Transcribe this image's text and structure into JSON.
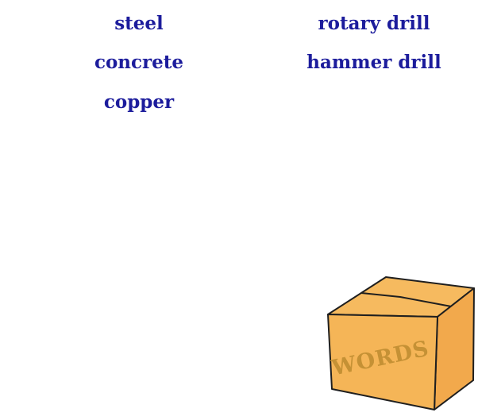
{
  "words": {
    "left_column": [
      "steel",
      "concrete",
      "copper"
    ],
    "right_column": [
      "rotary drill",
      "hammer drill"
    ]
  },
  "word_box": {
    "label": "WORDS",
    "colors": {
      "front": "#f5b557",
      "side": "#f2a94c",
      "top": "#f6ba5f",
      "outline": "#1f1f1f",
      "label": "#c59135"
    }
  },
  "colors": {
    "word_text": "#1c1c9c",
    "background": "#ffffff"
  }
}
